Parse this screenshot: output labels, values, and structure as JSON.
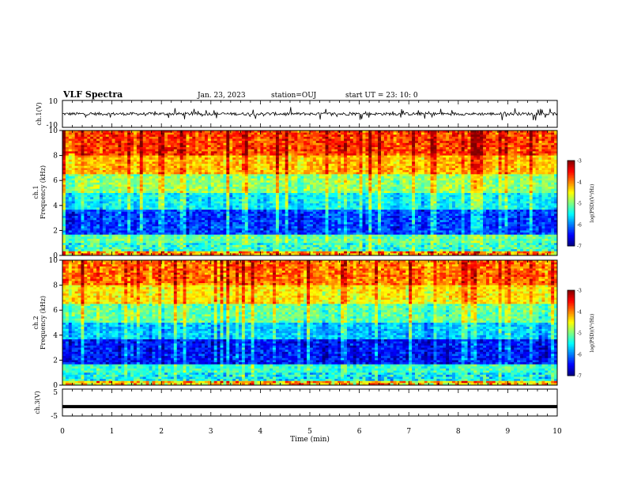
{
  "header": {
    "title": "VLF Spectra",
    "date": "Jan. 23, 2023",
    "station": "station=OUJ",
    "start": "start  UT  =   23: 10: 0"
  },
  "chart_data": [
    {
      "type": "line",
      "name": "ch1-waveform",
      "ylabel": "ch.1(V)",
      "ylim": [
        -10,
        10
      ],
      "ytick_labels": [
        "10",
        "-10"
      ],
      "xlim": [
        0,
        10
      ],
      "baseline": 0
    },
    {
      "type": "heatmap",
      "name": "ch1-spectrogram",
      "ylabel": "ch.1\nFrequency (kHz)",
      "ylim": [
        0,
        10
      ],
      "ytick_labels": [
        "0",
        "2",
        "4",
        "6",
        "8",
        "10"
      ],
      "xlim": [
        0,
        10
      ],
      "colorbar": {
        "label": "log(PSD)(V²/Hz)",
        "range": [
          -7,
          -3
        ],
        "tick_labels": [
          "-3",
          "-4",
          "-5",
          "-6",
          "-7"
        ]
      }
    },
    {
      "type": "heatmap",
      "name": "ch2-spectrogram",
      "ylabel": "ch.2\nFrequency (kHz)",
      "ylim": [
        0,
        10
      ],
      "ytick_labels": [
        "0",
        "2",
        "4",
        "6",
        "8",
        "10"
      ],
      "xlim": [
        0,
        10
      ],
      "colorbar": {
        "label": "log(PSD)(V²/Hz)",
        "range": [
          -7,
          -3
        ],
        "tick_labels": [
          "-3",
          "-4",
          "-5",
          "-6",
          "-7"
        ]
      }
    },
    {
      "type": "line",
      "name": "ch3-waveform",
      "ylabel": "ch.3(V)",
      "ylim": [
        -5,
        5
      ],
      "ytick_labels": [
        "5",
        "-5"
      ],
      "xlim": [
        0,
        10
      ],
      "level": -1.5
    }
  ],
  "xaxis": {
    "label": "Time (min)",
    "range": [
      0,
      10
    ],
    "tick_labels": [
      "0",
      "1",
      "2",
      "3",
      "4",
      "5",
      "6",
      "7",
      "8",
      "9",
      "10"
    ]
  },
  "colors": {
    "spectrum_low": "#00007f",
    "spectrum_high": "#ff0000",
    "waveform": "#000000"
  }
}
